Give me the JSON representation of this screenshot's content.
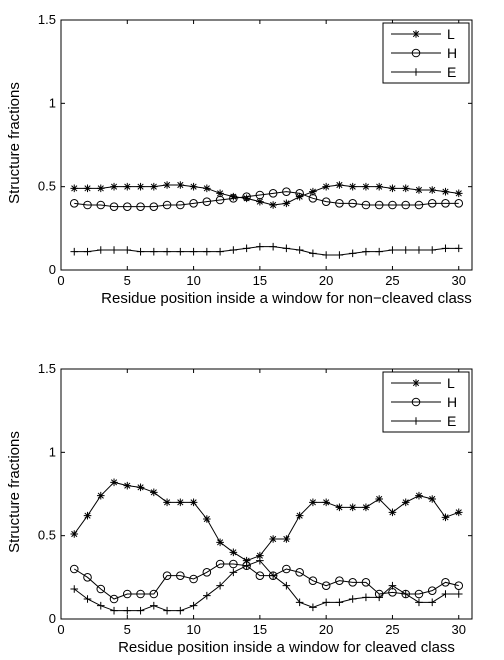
{
  "chart_data": [
    {
      "type": "line",
      "xlabel": "Residue position inside a window for non−cleaved class",
      "ylabel": "Structure fractions",
      "xlim": [
        0,
        31
      ],
      "ylim": [
        0,
        1.5
      ],
      "xticks": [
        0,
        5,
        10,
        15,
        20,
        25,
        30
      ],
      "yticks": [
        0,
        0.5,
        1,
        1.5
      ],
      "xtick_labels": [
        "0",
        "5",
        "10",
        "15",
        "20",
        "25",
        "30"
      ],
      "ytick_labels": [
        "0",
        "0.5",
        "1",
        "1.5"
      ],
      "grid": false,
      "legend_position": "top-right",
      "x": [
        1,
        2,
        3,
        4,
        5,
        6,
        7,
        8,
        9,
        10,
        11,
        12,
        13,
        14,
        15,
        16,
        17,
        18,
        19,
        20,
        21,
        22,
        23,
        24,
        25,
        26,
        27,
        28,
        29,
        30
      ],
      "series": [
        {
          "name": "L",
          "marker": "star",
          "values": [
            0.49,
            0.49,
            0.49,
            0.5,
            0.5,
            0.5,
            0.5,
            0.51,
            0.51,
            0.5,
            0.49,
            0.46,
            0.44,
            0.43,
            0.41,
            0.39,
            0.4,
            0.44,
            0.47,
            0.5,
            0.51,
            0.5,
            0.5,
            0.5,
            0.49,
            0.49,
            0.48,
            0.48,
            0.47,
            0.46
          ]
        },
        {
          "name": "H",
          "marker": "circle",
          "values": [
            0.4,
            0.39,
            0.39,
            0.38,
            0.38,
            0.38,
            0.38,
            0.39,
            0.39,
            0.4,
            0.41,
            0.42,
            0.43,
            0.44,
            0.45,
            0.46,
            0.47,
            0.46,
            0.43,
            0.41,
            0.4,
            0.4,
            0.39,
            0.39,
            0.39,
            0.39,
            0.39,
            0.4,
            0.4,
            0.4
          ]
        },
        {
          "name": "E",
          "marker": "plus",
          "values": [
            0.11,
            0.11,
            0.12,
            0.12,
            0.12,
            0.11,
            0.11,
            0.11,
            0.11,
            0.11,
            0.11,
            0.11,
            0.12,
            0.13,
            0.14,
            0.14,
            0.13,
            0.12,
            0.1,
            0.09,
            0.09,
            0.1,
            0.11,
            0.11,
            0.12,
            0.12,
            0.12,
            0.12,
            0.13,
            0.13
          ]
        }
      ]
    },
    {
      "type": "line",
      "xlabel": "Residue position inside a window for cleaved class",
      "ylabel": "Structure fractions",
      "xlim": [
        0,
        31
      ],
      "ylim": [
        0,
        1.5
      ],
      "xticks": [
        0,
        5,
        10,
        15,
        20,
        25,
        30
      ],
      "yticks": [
        0,
        0.5,
        1,
        1.5
      ],
      "xtick_labels": [
        "0",
        "5",
        "10",
        "15",
        "20",
        "25",
        "30"
      ],
      "ytick_labels": [
        "0",
        "0.5",
        "1",
        "1.5"
      ],
      "grid": false,
      "legend_position": "top-right",
      "x": [
        1,
        2,
        3,
        4,
        5,
        6,
        7,
        8,
        9,
        10,
        11,
        12,
        13,
        14,
        15,
        16,
        17,
        18,
        19,
        20,
        21,
        22,
        23,
        24,
        25,
        26,
        27,
        28,
        29,
        30
      ],
      "series": [
        {
          "name": "L",
          "marker": "star",
          "values": [
            0.51,
            0.62,
            0.74,
            0.82,
            0.8,
            0.79,
            0.76,
            0.7,
            0.7,
            0.7,
            0.6,
            0.46,
            0.4,
            0.35,
            0.38,
            0.48,
            0.48,
            0.62,
            0.7,
            0.7,
            0.67,
            0.67,
            0.67,
            0.72,
            0.64,
            0.7,
            0.74,
            0.72,
            0.61,
            0.64
          ]
        },
        {
          "name": "H",
          "marker": "circle",
          "values": [
            0.3,
            0.25,
            0.18,
            0.12,
            0.15,
            0.15,
            0.15,
            0.26,
            0.26,
            0.24,
            0.28,
            0.33,
            0.33,
            0.32,
            0.26,
            0.26,
            0.3,
            0.28,
            0.23,
            0.2,
            0.23,
            0.22,
            0.22,
            0.15,
            0.16,
            0.15,
            0.15,
            0.17,
            0.22,
            0.2
          ]
        },
        {
          "name": "E",
          "marker": "plus",
          "values": [
            0.18,
            0.12,
            0.08,
            0.05,
            0.05,
            0.05,
            0.08,
            0.05,
            0.05,
            0.08,
            0.14,
            0.2,
            0.28,
            0.32,
            0.35,
            0.26,
            0.2,
            0.1,
            0.07,
            0.1,
            0.1,
            0.12,
            0.13,
            0.13,
            0.2,
            0.15,
            0.1,
            0.1,
            0.15,
            0.15
          ]
        }
      ]
    }
  ]
}
